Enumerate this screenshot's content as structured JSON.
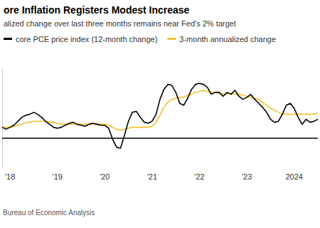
{
  "chart_data": {
    "type": "line",
    "title": "ore Inflation Registers Modest Increase",
    "subtitle": "alized change over last three months remains near Fed's 2% target",
    "source": "Bureau of Economic Analysis",
    "categories": [
      null,
      null,
      "'18",
      null,
      null,
      null,
      null,
      null,
      null,
      null,
      null,
      null,
      null,
      null,
      "'19",
      null,
      null,
      null,
      null,
      null,
      null,
      null,
      null,
      null,
      null,
      null,
      "'20",
      null,
      null,
      null,
      null,
      null,
      null,
      null,
      null,
      null,
      null,
      null,
      "'21",
      null,
      null,
      null,
      null,
      null,
      null,
      null,
      null,
      null,
      null,
      null,
      "'22",
      null,
      null,
      null,
      null,
      null,
      null,
      null,
      null,
      null,
      null,
      null,
      "'23",
      null,
      null,
      null,
      null,
      null,
      null,
      null,
      null,
      null,
      null,
      null,
      "2024",
      null,
      null,
      null,
      null,
      null,
      null
    ],
    "series": [
      {
        "name": "core PCE price index (12-month change)",
        "color": "#000000",
        "values": [
          1.1,
          0.9,
          1.1,
          1.3,
          1.7,
          2.1,
          2.3,
          2.4,
          2.6,
          2.4,
          2.1,
          1.7,
          1.4,
          1.1,
          1.0,
          1.1,
          1.3,
          1.5,
          1.6,
          1.4,
          1.3,
          1.2,
          1.4,
          1.5,
          1.4,
          1.3,
          1.3,
          1.0,
          -0.1,
          -0.9,
          -1.0,
          0.3,
          1.7,
          2.6,
          2.7,
          2.1,
          1.6,
          1.5,
          1.7,
          2.4,
          3.9,
          4.9,
          5.4,
          5.3,
          4.6,
          3.5,
          3.3,
          4.0,
          4.9,
          5.4,
          5.5,
          5.4,
          5.1,
          4.4,
          4.6,
          4.6,
          4.2,
          4.6,
          4.4,
          4.8,
          4.2,
          3.9,
          4.1,
          4.4,
          3.9,
          3.5,
          3.1,
          2.6,
          1.9,
          1.6,
          1.7,
          2.4,
          3.3,
          3.5,
          3.0,
          2.1,
          1.4,
          1.9,
          1.6,
          1.7,
          1.9
        ]
      },
      {
        "name": "3-month annualized change",
        "color": "#f2c12e",
        "values": [
          1.1,
          1.1,
          1.1,
          1.2,
          1.3,
          1.4,
          1.6,
          1.6,
          1.7,
          1.7,
          1.7,
          1.7,
          1.6,
          1.6,
          1.5,
          1.4,
          1.4,
          1.4,
          1.4,
          1.4,
          1.4,
          1.4,
          1.4,
          1.4,
          1.4,
          1.4,
          1.4,
          1.3,
          1.1,
          0.9,
          0.8,
          0.9,
          1.0,
          1.1,
          1.1,
          1.1,
          1.1,
          1.1,
          1.2,
          1.6,
          2.3,
          3.1,
          3.6,
          3.9,
          4.0,
          4.1,
          4.1,
          4.3,
          4.4,
          4.6,
          4.7,
          4.8,
          4.7,
          4.6,
          4.6,
          4.5,
          4.4,
          4.5,
          4.5,
          4.4,
          4.4,
          4.3,
          4.2,
          4.1,
          4.0,
          3.9,
          3.6,
          3.3,
          3.0,
          2.8,
          2.6,
          2.4,
          2.4,
          2.4,
          2.4,
          2.4,
          2.4,
          2.4,
          2.4,
          2.4,
          2.5
        ]
      }
    ],
    "ylim": [
      -3,
      7
    ],
    "yticks": [
      0
    ],
    "grid": false,
    "legend": "top-left",
    "tick_labels": "x"
  }
}
